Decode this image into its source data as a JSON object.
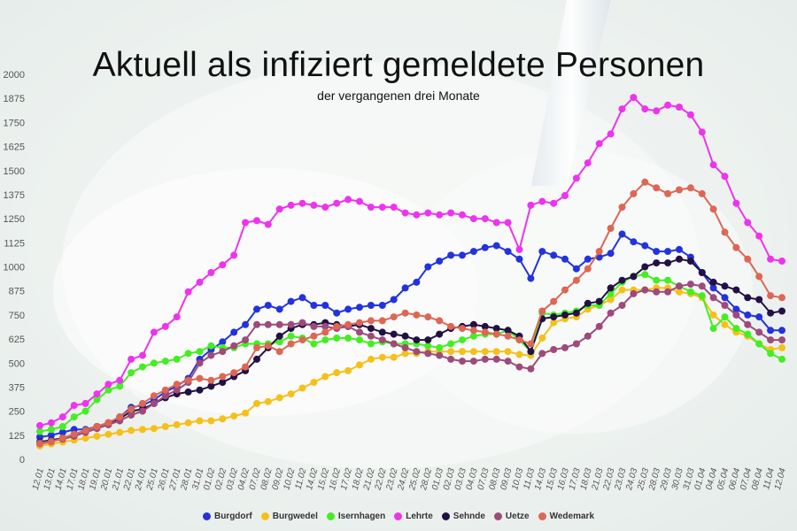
{
  "title": "Aktuell als infiziert gemeldete Personen",
  "subtitle": "der vergangenen drei Monate",
  "chart_data": {
    "type": "line",
    "title": "Aktuell als infiziert gemeldete Personen",
    "subtitle": "der vergangenen drei Monate",
    "xlabel": "",
    "ylabel": "",
    "ylim": [
      0,
      2000
    ],
    "yticks": [
      0,
      125,
      250,
      375,
      500,
      625,
      750,
      875,
      1000,
      1125,
      1250,
      1375,
      1500,
      1625,
      1750,
      1875,
      2000
    ],
    "grid": false,
    "legend_position": "bottom",
    "x": [
      "12.01",
      "13.01",
      "14.01",
      "17.01",
      "18.01",
      "19.01",
      "20.01",
      "21.01",
      "22.01",
      "24.01",
      "25.01",
      "26.01",
      "27.01",
      "28.01",
      "31.01",
      "01.02",
      "02.02",
      "03.02",
      "04.02",
      "07.02",
      "08.02",
      "09.02",
      "10.02",
      "11.02",
      "14.02",
      "15.02",
      "16.02",
      "17.02",
      "18.02",
      "21.02",
      "22.02",
      "23.02",
      "24.02",
      "25.02",
      "28.02",
      "01.03",
      "02.03",
      "03.03",
      "04.03",
      "07.03",
      "08.03",
      "09.03",
      "10.03",
      "11.03",
      "14.03",
      "15.03",
      "16.03",
      "17.03",
      "18.03",
      "21.03",
      "22.03",
      "23.03",
      "24.03",
      "25.03",
      "28.03",
      "29.03",
      "30.03",
      "31.03",
      "01.04",
      "04.04",
      "05.04",
      "06.04",
      "07.04",
      "08.04",
      "11.04",
      "12.04"
    ],
    "series": [
      {
        "name": "Burgdorf",
        "color": "#2233dd",
        "values": [
          115,
          125,
          140,
          155,
          155,
          170,
          190,
          220,
          270,
          280,
          310,
          350,
          380,
          420,
          520,
          570,
          610,
          660,
          700,
          780,
          800,
          780,
          820,
          840,
          800,
          800,
          760,
          780,
          790,
          800,
          800,
          830,
          890,
          920,
          1000,
          1030,
          1060,
          1060,
          1080,
          1100,
          1110,
          1080,
          1040,
          940,
          1080,
          1060,
          1040,
          990,
          1040,
          1050,
          1070,
          1170,
          1130,
          1110,
          1080,
          1080,
          1090,
          1050,
          970,
          890,
          840,
          780,
          750,
          740,
          670,
          670
        ]
      },
      {
        "name": "Burgwedel",
        "color": "#f5c01a",
        "values": [
          70,
          80,
          90,
          100,
          110,
          120,
          130,
          140,
          150,
          155,
          160,
          170,
          180,
          190,
          200,
          200,
          210,
          225,
          240,
          290,
          300,
          320,
          340,
          370,
          400,
          430,
          450,
          460,
          490,
          520,
          530,
          530,
          550,
          550,
          560,
          560,
          560,
          560,
          560,
          560,
          560,
          560,
          545,
          540,
          630,
          710,
          730,
          740,
          780,
          800,
          830,
          880,
          880,
          880,
          890,
          890,
          870,
          860,
          840,
          750,
          700,
          660,
          640,
          600,
          570,
          580
        ]
      },
      {
        "name": "Isernhagen",
        "color": "#44ee22",
        "values": [
          145,
          155,
          170,
          220,
          250,
          310,
          360,
          380,
          450,
          480,
          500,
          510,
          520,
          550,
          560,
          590,
          580,
          580,
          600,
          600,
          600,
          610,
          640,
          630,
          600,
          620,
          630,
          630,
          620,
          600,
          610,
          600,
          600,
          600,
          590,
          580,
          600,
          620,
          640,
          650,
          650,
          670,
          620,
          560,
          760,
          750,
          760,
          770,
          800,
          800,
          860,
          920,
          950,
          960,
          930,
          930,
          900,
          870,
          850,
          680,
          740,
          680,
          650,
          600,
          550,
          520
        ]
      },
      {
        "name": "Lehrte",
        "color": "#ee33ee",
        "values": [
          175,
          190,
          220,
          280,
          290,
          340,
          390,
          410,
          520,
          540,
          660,
          690,
          740,
          870,
          920,
          970,
          1010,
          1060,
          1230,
          1240,
          1220,
          1300,
          1320,
          1330,
          1320,
          1310,
          1330,
          1350,
          1340,
          1310,
          1310,
          1310,
          1280,
          1270,
          1280,
          1270,
          1280,
          1270,
          1250,
          1250,
          1230,
          1230,
          1090,
          1320,
          1340,
          1330,
          1370,
          1460,
          1540,
          1640,
          1690,
          1820,
          1880,
          1820,
          1810,
          1840,
          1830,
          1790,
          1700,
          1530,
          1470,
          1330,
          1230,
          1160,
          1040,
          1030
        ]
      },
      {
        "name": "Sehnde",
        "color": "#221144",
        "values": [
          90,
          100,
          110,
          130,
          150,
          170,
          190,
          210,
          250,
          260,
          290,
          320,
          340,
          350,
          360,
          380,
          400,
          430,
          460,
          520,
          580,
          640,
          680,
          700,
          700,
          710,
          700,
          690,
          700,
          680,
          660,
          650,
          640,
          620,
          620,
          650,
          680,
          690,
          700,
          690,
          680,
          670,
          640,
          560,
          730,
          740,
          750,
          760,
          810,
          820,
          890,
          930,
          950,
          1000,
          1020,
          1020,
          1040,
          1030,
          970,
          920,
          900,
          880,
          840,
          830,
          760,
          770
        ]
      },
      {
        "name": "Uetze",
        "color": "#9e4a7a",
        "values": [
          85,
          95,
          105,
          120,
          140,
          160,
          180,
          200,
          230,
          250,
          290,
          330,
          360,
          400,
          500,
          540,
          560,
          590,
          620,
          700,
          700,
          700,
          700,
          710,
          690,
          690,
          680,
          690,
          660,
          640,
          620,
          600,
          580,
          560,
          550,
          540,
          520,
          510,
          510,
          520,
          520,
          510,
          480,
          470,
          550,
          570,
          580,
          600,
          640,
          690,
          760,
          800,
          860,
          880,
          870,
          870,
          900,
          910,
          900,
          840,
          800,
          750,
          700,
          660,
          620,
          620
        ]
      },
      {
        "name": "Wedemark",
        "color": "#dd6655",
        "values": [
          80,
          90,
          110,
          130,
          150,
          170,
          190,
          220,
          260,
          290,
          330,
          360,
          390,
          410,
          420,
          410,
          430,
          450,
          480,
          580,
          590,
          560,
          600,
          620,
          640,
          660,
          690,
          700,
          710,
          720,
          720,
          740,
          760,
          750,
          740,
          720,
          690,
          680,
          670,
          660,
          650,
          640,
          620,
          600,
          770,
          820,
          880,
          930,
          990,
          1080,
          1200,
          1310,
          1380,
          1440,
          1410,
          1380,
          1400,
          1410,
          1380,
          1300,
          1180,
          1100,
          1040,
          950,
          850,
          840
        ]
      }
    ]
  }
}
